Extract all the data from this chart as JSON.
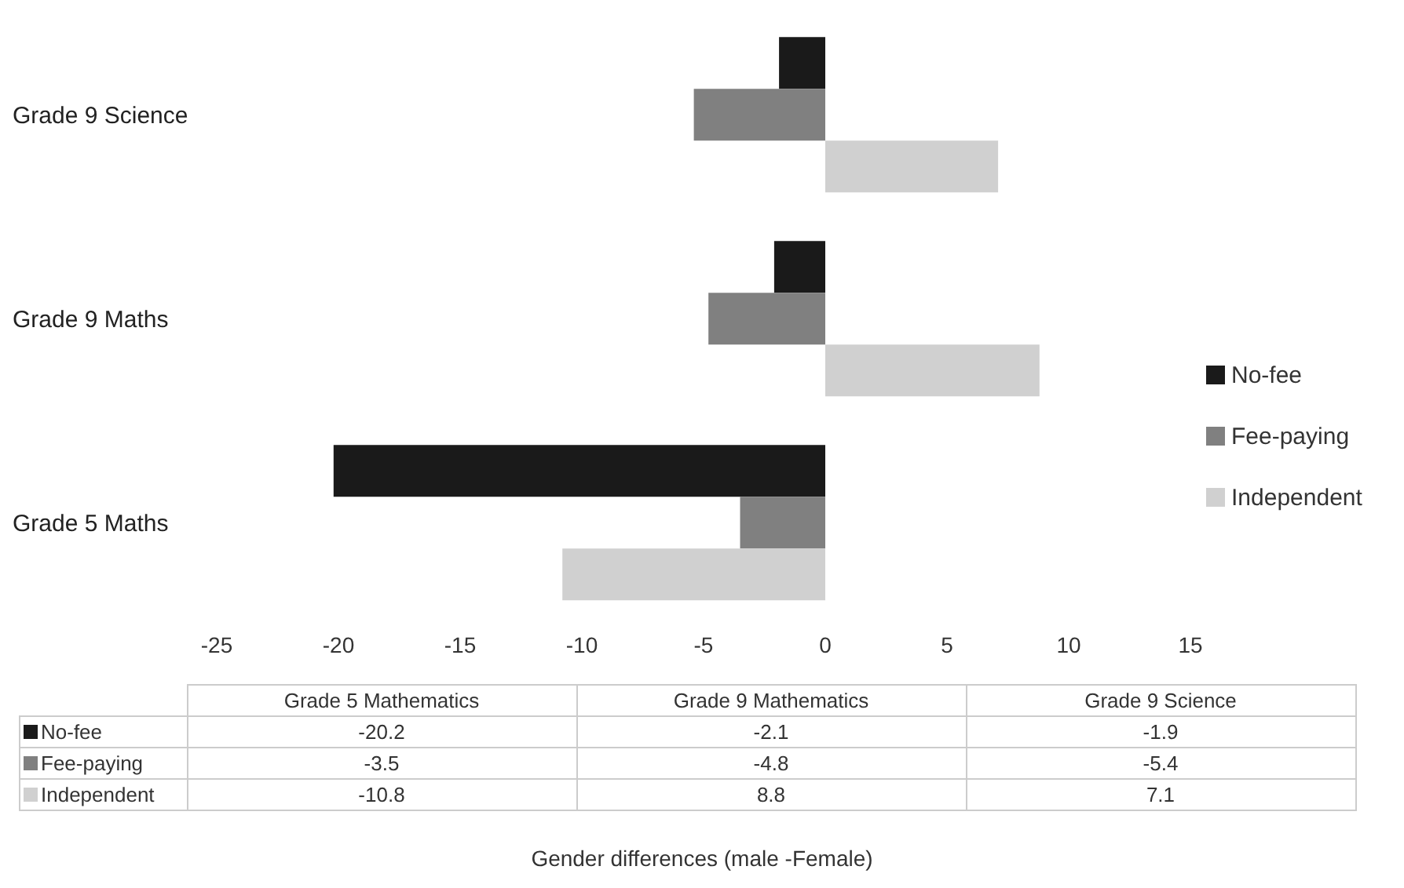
{
  "chart_data": [
    {
      "type": "bar",
      "orientation": "horizontal",
      "categories": [
        "Grade 9 Science",
        "Grade 9 Maths",
        "Grade 5 Maths"
      ],
      "series": [
        {
          "name": "No-fee",
          "color": "#1a1a1a",
          "values": [
            -1.9,
            -2.1,
            -20.2
          ]
        },
        {
          "name": "Fee-paying",
          "color": "#808080",
          "values": [
            -5.4,
            -4.8,
            -3.5
          ]
        },
        {
          "name": "Independent",
          "color": "#d0d0d0",
          "values": [
            7.1,
            8.8,
            -10.8
          ]
        }
      ],
      "xlim": [
        -25,
        15
      ],
      "xticks": [
        -25,
        -20,
        -15,
        -10,
        -5,
        0,
        5,
        10,
        15
      ],
      "legend": "right",
      "grid": false
    },
    {
      "type": "other",
      "categories": [
        "Grade 5 Mathematics",
        "Grade 9 Mathematics",
        "Grade 9 Science"
      ],
      "series": [
        {
          "name": "No-fee",
          "color": "#1a1a1a",
          "values": [
            -20.2,
            -2.1,
            -1.9
          ]
        },
        {
          "name": "Fee-paying",
          "color": "#808080",
          "values": [
            -3.5,
            -4.8,
            -5.4
          ]
        },
        {
          "name": "Independent",
          "color": "#d0d0d0",
          "values": [
            -10.8,
            8.8,
            7.1
          ]
        }
      ],
      "data_labels": true,
      "annotations": [
        "Gender differences (male -Female)"
      ]
    }
  ]
}
